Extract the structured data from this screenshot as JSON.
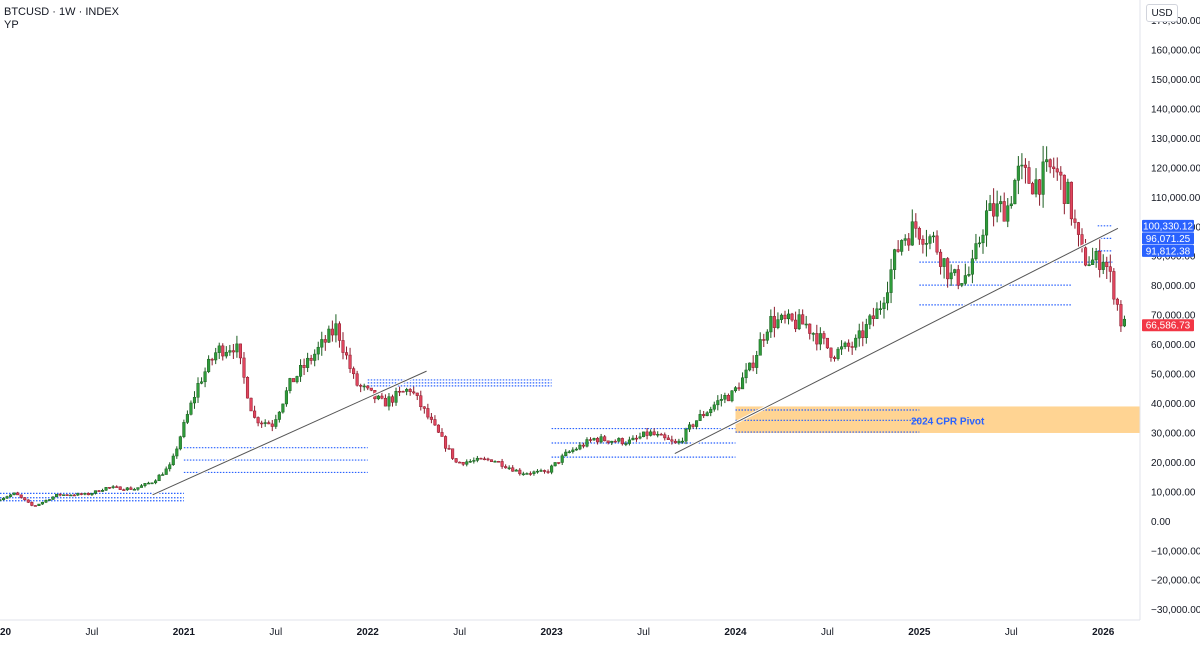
{
  "header": {
    "symbol": "BTCUSD",
    "interval": "1W",
    "market": "INDEX",
    "sep": "·",
    "user": "YP"
  },
  "currency_button": "USD",
  "colors": {
    "up": "#26a69a",
    "up_body": "#1e7a2e",
    "down": "#c2314b",
    "level": "#2962ff",
    "trendline": "#787b86",
    "zone": "#ffcc80",
    "last_price": "#f23645",
    "tag": "#2962ff"
  },
  "chart_data": {
    "type": "candlestick",
    "x": {
      "labels": [
        "2020",
        "Jul",
        "2021",
        "Jul",
        "2022",
        "Jul",
        "2023",
        "Jul",
        "2024",
        "Jul",
        "2025",
        "Jul",
        "2026"
      ],
      "label_years": [
        2020,
        2020.5,
        2021,
        2021.5,
        2022,
        2022.5,
        2023,
        2023.5,
        2024,
        2024.5,
        2025,
        2025.5,
        2026
      ],
      "range": [
        2020.0,
        2026.2
      ]
    },
    "y": {
      "ticks": [
        "170,000.00",
        "160,000.00",
        "150,000.00",
        "140,000.00",
        "130,000.00",
        "120,000.00",
        "110,000.00",
        "100,000.00",
        "90,000.00",
        "80,000.00",
        "70,000.00",
        "60,000.00",
        "50,000.00",
        "40,000.00",
        "30,000.00",
        "20,000.00",
        "10,000.00",
        "0.00",
        "−10,000.00",
        "−20,000.00",
        "−30,000.00"
      ],
      "tick_values": [
        170000,
        160000,
        150000,
        140000,
        130000,
        120000,
        110000,
        100000,
        90000,
        80000,
        70000,
        60000,
        50000,
        40000,
        30000,
        20000,
        10000,
        0,
        -10000,
        -20000,
        -30000
      ],
      "range": [
        -33500,
        177000
      ]
    },
    "price_path": [
      [
        2020.0,
        7200
      ],
      [
        2020.1,
        9500
      ],
      [
        2020.2,
        5000
      ],
      [
        2020.33,
        9000
      ],
      [
        2020.5,
        9200
      ],
      [
        2020.6,
        11500
      ],
      [
        2020.75,
        11000
      ],
      [
        2020.85,
        13500
      ],
      [
        2020.95,
        19000
      ],
      [
        2021.0,
        29000
      ],
      [
        2021.1,
        47000
      ],
      [
        2021.2,
        58000
      ],
      [
        2021.3,
        60000
      ],
      [
        2021.4,
        35000
      ],
      [
        2021.5,
        33000
      ],
      [
        2021.6,
        47000
      ],
      [
        2021.8,
        62000
      ],
      [
        2021.85,
        66000
      ],
      [
        2021.95,
        47000
      ],
      [
        2022.1,
        40000
      ],
      [
        2022.25,
        45000
      ],
      [
        2022.4,
        30000
      ],
      [
        2022.5,
        20000
      ],
      [
        2022.7,
        21000
      ],
      [
        2022.85,
        16500
      ],
      [
        2022.99,
        16600
      ],
      [
        2023.1,
        23000
      ],
      [
        2023.25,
        28000
      ],
      [
        2023.45,
        27000
      ],
      [
        2023.55,
        30000
      ],
      [
        2023.7,
        26000
      ],
      [
        2023.8,
        34000
      ],
      [
        2023.95,
        42000
      ],
      [
        2024.0,
        43000
      ],
      [
        2024.1,
        52000
      ],
      [
        2024.2,
        68000
      ],
      [
        2024.4,
        67000
      ],
      [
        2024.55,
        57000
      ],
      [
        2024.67,
        60000
      ],
      [
        2024.8,
        72000
      ],
      [
        2024.92,
        96000
      ],
      [
        2025.0,
        100000
      ],
      [
        2025.1,
        95000
      ],
      [
        2025.2,
        82000
      ],
      [
        2025.3,
        84000
      ],
      [
        2025.38,
        104000
      ],
      [
        2025.5,
        107000
      ],
      [
        2025.55,
        118000
      ],
      [
        2025.65,
        115000
      ],
      [
        2025.75,
        120000
      ],
      [
        2025.83,
        110000
      ],
      [
        2025.9,
        90000
      ],
      [
        2025.97,
        88000
      ],
      [
        2026.02,
        90000
      ],
      [
        2026.08,
        78000
      ],
      [
        2026.12,
        66586
      ]
    ],
    "levels": [
      {
        "y": 100330.12,
        "x": [
          2025.97,
          2026.05
        ]
      },
      {
        "y": 96071.25,
        "x": [
          2025.97,
          2026.05
        ]
      },
      {
        "y": 91812.38,
        "x": [
          2025.97,
          2026.05
        ]
      },
      {
        "y": 88000,
        "x": [
          2025.0,
          2026.05
        ]
      },
      {
        "y": 80200,
        "x": [
          2025.0,
          2025.83
        ]
      },
      {
        "y": 73500,
        "x": [
          2025.0,
          2025.83
        ]
      },
      {
        "y": 37800,
        "x": [
          2024.0,
          2025.0
        ]
      },
      {
        "y": 34300,
        "x": [
          2024.0,
          2025.0
        ]
      },
      {
        "y": 30300,
        "x": [
          2024.0,
          2025.0
        ]
      },
      {
        "y": 31500,
        "x": [
          2023.0,
          2024.0
        ]
      },
      {
        "y": 26600,
        "x": [
          2023.0,
          2024.0
        ]
      },
      {
        "y": 21800,
        "x": [
          2023.0,
          2024.0
        ]
      },
      {
        "y": 48000,
        "x": [
          2022.0,
          2023.0
        ]
      },
      {
        "y": 47000,
        "x": [
          2022.0,
          2023.0
        ]
      },
      {
        "y": 46000,
        "x": [
          2022.0,
          2023.0
        ]
      },
      {
        "y": 25000,
        "x": [
          2021.0,
          2022.0
        ]
      },
      {
        "y": 20800,
        "x": [
          2021.0,
          2022.0
        ]
      },
      {
        "y": 16600,
        "x": [
          2021.0,
          2022.0
        ]
      },
      {
        "y": 9500,
        "x": [
          2020.0,
          2021.0
        ]
      },
      {
        "y": 8000,
        "x": [
          2020.0,
          2021.0
        ]
      },
      {
        "y": 7000,
        "x": [
          2020.0,
          2021.0
        ]
      }
    ],
    "trendlines": [
      {
        "from": [
          2020.83,
          9000
        ],
        "to": [
          2022.32,
          51000
        ]
      },
      {
        "from": [
          2023.67,
          23000
        ],
        "to": [
          2026.08,
          99500
        ]
      }
    ],
    "zone": {
      "x": [
        2024.0,
        2026.2
      ],
      "y": [
        30000,
        39000
      ],
      "label": "2024 CPR Pivot"
    },
    "price_tags": [
      {
        "text": "100,330.12",
        "y": 100330.12,
        "color": "#2962ff"
      },
      {
        "text": "96,071.25",
        "y": 96071.25,
        "color": "#2962ff"
      },
      {
        "text": "91,812.38",
        "y": 91812.38,
        "color": "#2962ff"
      },
      {
        "text": "66,586.73",
        "y": 66586.73,
        "color": "#f23645"
      }
    ]
  }
}
